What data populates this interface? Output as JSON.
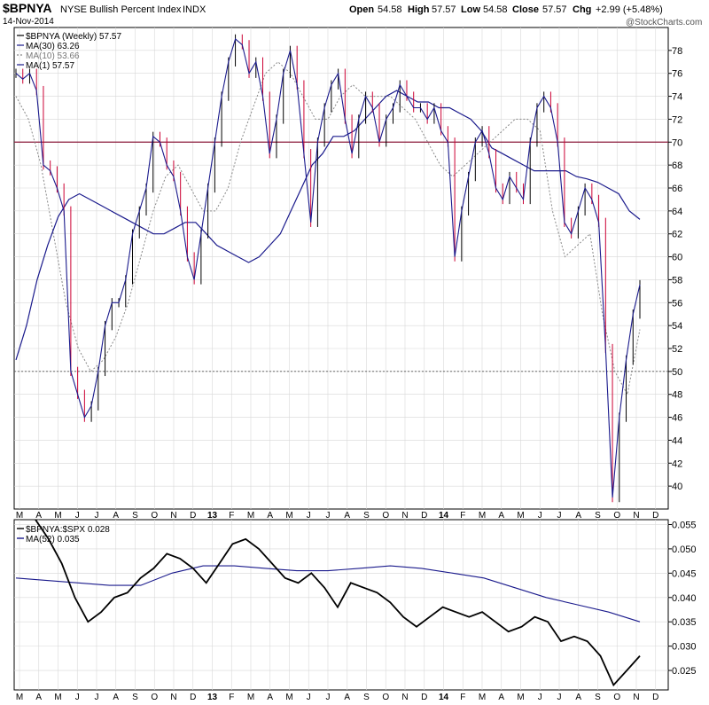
{
  "header": {
    "symbol": "$BPNYA",
    "name": "NYSE Bullish Percent Index",
    "exchange": "INDX",
    "date": "14-Nov-2014",
    "open_label": "Open",
    "open": "54.58",
    "high_label": "High",
    "high": "57.57",
    "low_label": "Low",
    "low": "54.58",
    "close_label": "Close",
    "close": "57.57",
    "chg_label": "Chg",
    "chg": "+2.99 (+5.48%)",
    "watermark": "@StockCharts.com"
  },
  "colors": {
    "price": "#000000",
    "down": "#cc0033",
    "ma_long": "#1a1a8c",
    "ref_line": "#8b1a3a",
    "grid": "#d8d8d8"
  },
  "chart_data": [
    {
      "type": "line",
      "title": "$BPNYA NYSE Bullish Percent Index INDX",
      "legend": [
        {
          "label": "$BPNYA (Weekly) 57.57"
        },
        {
          "label": "MA(30) 63.26"
        },
        {
          "label": "MA(10) 53.66"
        },
        {
          "label": "MA(1) 57.57"
        }
      ],
      "ylim": [
        38,
        80
      ],
      "yticks": [
        40,
        42,
        44,
        46,
        48,
        50,
        52,
        54,
        56,
        58,
        60,
        62,
        64,
        66,
        68,
        70,
        72,
        74,
        76,
        78
      ],
      "reference_lines": [
        {
          "value": 70,
          "style": "solid"
        },
        {
          "value": 50,
          "style": "dotted"
        }
      ],
      "x_month_labels": [
        "M",
        "A",
        "M",
        "J",
        "J",
        "A",
        "S",
        "O",
        "N",
        "D",
        "13",
        "F",
        "M",
        "A",
        "M",
        "J",
        "J",
        "A",
        "S",
        "O",
        "N",
        "D",
        "14",
        "F",
        "M",
        "A",
        "M",
        "J",
        "J",
        "A",
        "S",
        "O",
        "N",
        "D"
      ],
      "series": [
        {
          "name": "$BPNYA (Weekly)",
          "values": [
            76,
            75.5,
            76,
            74.5,
            68,
            67.5,
            66,
            64,
            50,
            48,
            46,
            47,
            50,
            54,
            56,
            56,
            58,
            62,
            64,
            66,
            70.5,
            70,
            68,
            67,
            64,
            60,
            58,
            62,
            66,
            70,
            74,
            77,
            79,
            78.5,
            76,
            77,
            74,
            69,
            72,
            76,
            78,
            75,
            69,
            63,
            70,
            73,
            75,
            76,
            72,
            69,
            72,
            74,
            73,
            70,
            72,
            73,
            75,
            74,
            73,
            73,
            72,
            73,
            71,
            70,
            60,
            64,
            67,
            70,
            71,
            69,
            66,
            65,
            67,
            66,
            65,
            70,
            73,
            74,
            73,
            70,
            63,
            62,
            64,
            66,
            65,
            63,
            52,
            39,
            46,
            51,
            55,
            57.57
          ]
        },
        {
          "name": "MA(30)",
          "values": [
            51,
            54,
            58,
            61,
            63.5,
            65,
            65.5,
            65,
            64.5,
            64,
            63.5,
            63,
            62.5,
            62,
            62,
            62.5,
            63,
            63,
            62,
            61,
            60.5,
            60,
            59.5,
            60,
            61,
            62,
            64,
            66,
            68,
            69,
            70.5,
            70.5,
            71,
            72,
            73,
            74,
            74.5,
            74,
            73.5,
            73.5,
            73,
            73,
            72.5,
            72,
            71,
            69.5,
            69,
            68.5,
            68,
            67.5,
            67.5,
            67.5,
            67.5,
            67,
            66.8,
            66.5,
            66,
            65.5,
            64,
            63.26
          ]
        },
        {
          "name": "MA(10)",
          "values": [
            74,
            72,
            68,
            62,
            56,
            52,
            50,
            51,
            53,
            56,
            60,
            64,
            67,
            68,
            66,
            64,
            64,
            66,
            70,
            73,
            76,
            77,
            76,
            74,
            72,
            72,
            74,
            75,
            74,
            74,
            74,
            73,
            72,
            70,
            68,
            67,
            68,
            69,
            70,
            71,
            72,
            72,
            71,
            64,
            60,
            61,
            62,
            55,
            50,
            48,
            53.66
          ]
        },
        {
          "name": "$BPNYA:$SPX",
          "ylim": [
            0.021,
            0.056
          ],
          "values": [
            0.056,
            0.052,
            0.047,
            0.04,
            0.035,
            0.037,
            0.04,
            0.041,
            0.044,
            0.046,
            0.049,
            0.048,
            0.046,
            0.043,
            0.047,
            0.051,
            0.052,
            0.05,
            0.047,
            0.044,
            0.043,
            0.045,
            0.042,
            0.038,
            0.043,
            0.042,
            0.041,
            0.039,
            0.036,
            0.034,
            0.036,
            0.038,
            0.037,
            0.036,
            0.037,
            0.035,
            0.033,
            0.034,
            0.036,
            0.035,
            0.031,
            0.032,
            0.031,
            0.028,
            0.022,
            0.025,
            0.028
          ]
        },
        {
          "name": "MA(52)",
          "values": [
            0.044,
            0.0435,
            0.043,
            0.0425,
            0.0425,
            0.045,
            0.0465,
            0.0465,
            0.046,
            0.0455,
            0.0455,
            0.046,
            0.0465,
            0.046,
            0.045,
            0.044,
            0.042,
            0.04,
            0.0385,
            0.037,
            0.035
          ]
        }
      ]
    },
    {
      "type": "line",
      "title": "$BPNYA:$SPX",
      "legend": [
        {
          "label": "$BPNYA:$SPX 0.028"
        },
        {
          "label": "MA(52) 0.035"
        }
      ],
      "ylim": [
        0.021,
        0.056
      ],
      "yticks_labels": [
        "0.025",
        "0.030",
        "0.035",
        "0.040",
        "0.045",
        "0.050",
        "0.055"
      ],
      "x_month_labels": [
        "M",
        "A",
        "M",
        "J",
        "J",
        "A",
        "S",
        "O",
        "N",
        "D",
        "13",
        "F",
        "M",
        "A",
        "M",
        "J",
        "J",
        "A",
        "S",
        "O",
        "N",
        "D",
        "14",
        "F",
        "M",
        "A",
        "M",
        "J",
        "J",
        "A",
        "S",
        "O",
        "N",
        "D"
      ]
    }
  ]
}
